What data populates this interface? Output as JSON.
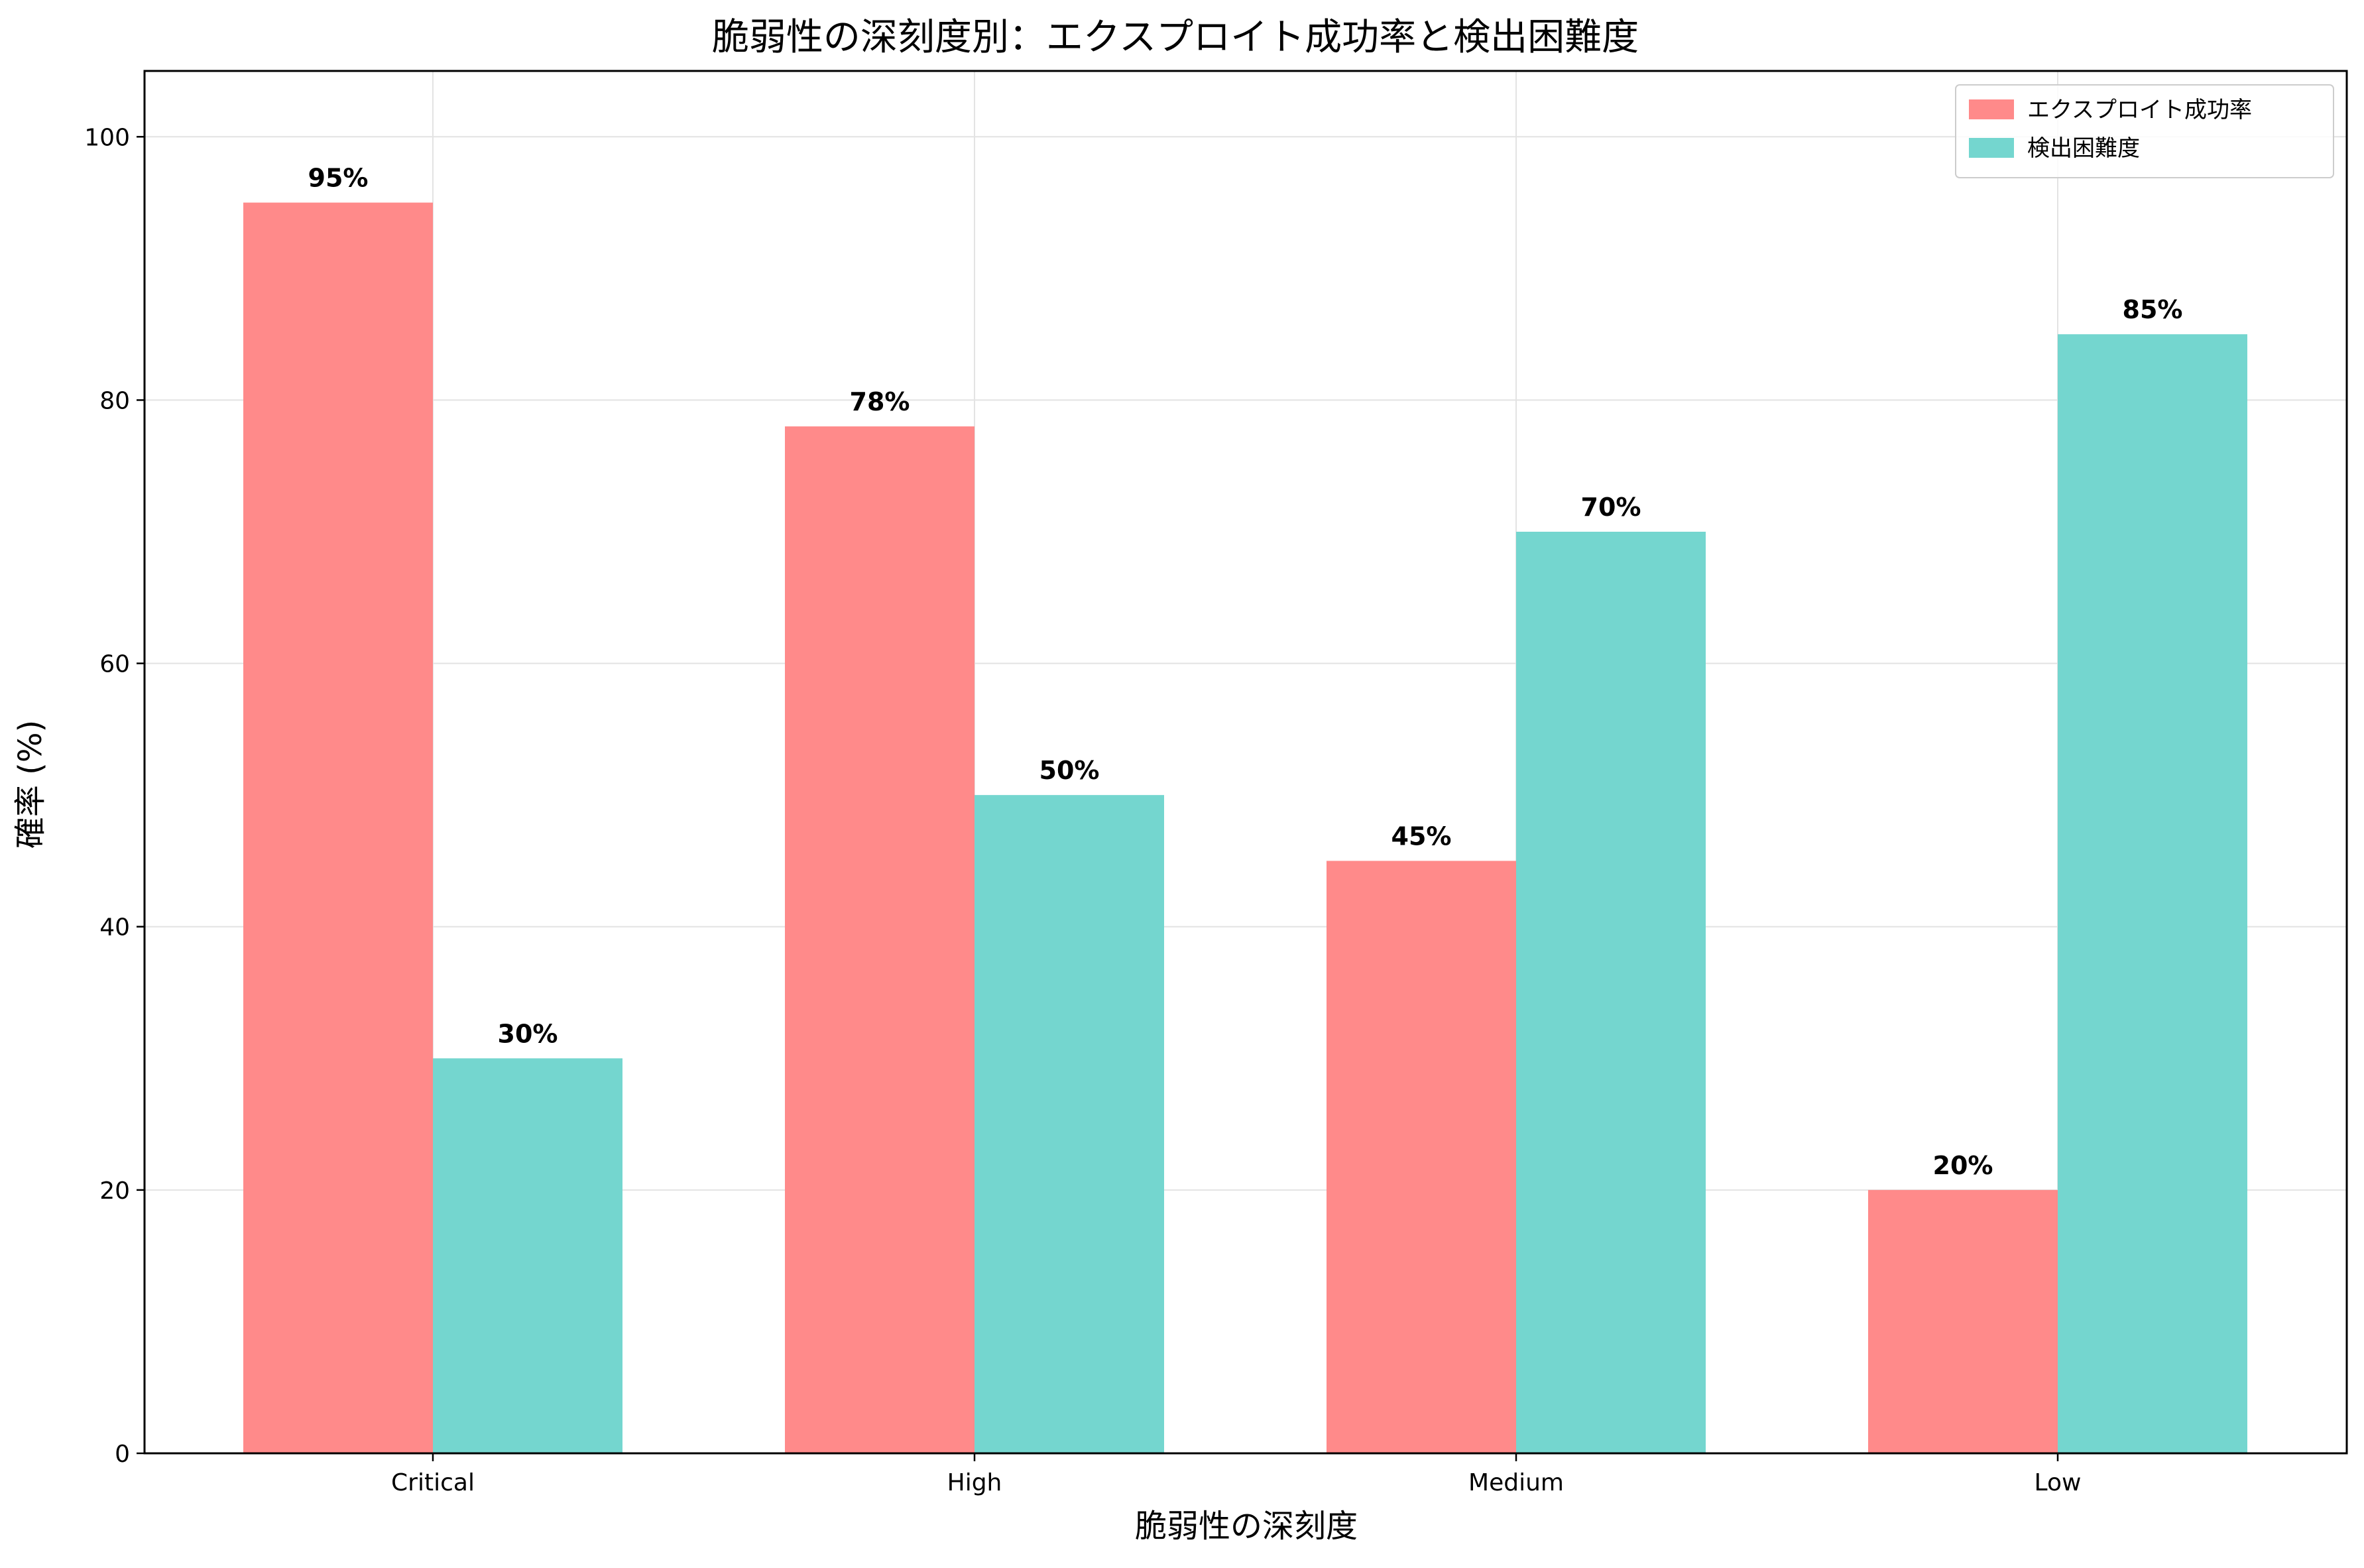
{
  "chart_data": {
    "type": "bar",
    "title": "脆弱性の深刻度別：エクスプロイト成功率と検出困難度",
    "xlabel": "脆弱性の深刻度",
    "ylabel": "確率 (%)",
    "categories": [
      "Critical",
      "High",
      "Medium",
      "Low"
    ],
    "series": [
      {
        "name": "エクスプロイト成功率",
        "values": [
          95,
          78,
          45,
          20
        ],
        "labels": [
          "95%",
          "78%",
          "45%",
          "20%"
        ],
        "color": "#ff8a8a"
      },
      {
        "name": "検出困難度",
        "values": [
          30,
          50,
          70,
          85
        ],
        "labels": [
          "30%",
          "50%",
          "70%",
          "85%"
        ],
        "color": "#74d6cf"
      }
    ],
    "ylim": [
      0,
      105
    ],
    "yticks": [
      0,
      20,
      40,
      60,
      80,
      100
    ],
    "grid": true,
    "legend_position": "top-right"
  }
}
